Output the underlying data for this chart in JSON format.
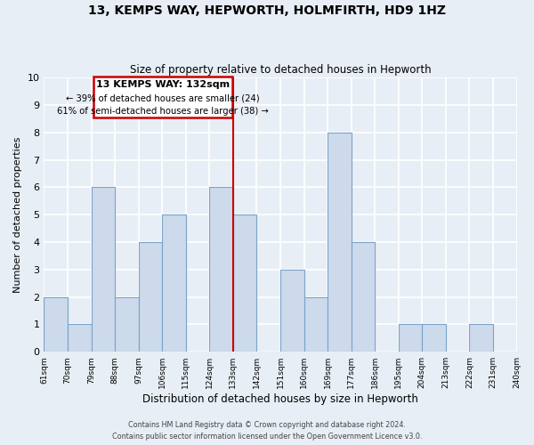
{
  "title": "13, KEMPS WAY, HEPWORTH, HOLMFIRTH, HD9 1HZ",
  "subtitle": "Size of property relative to detached houses in Hepworth",
  "xlabel": "Distribution of detached houses by size in Hepworth",
  "ylabel": "Number of detached properties",
  "bar_color": "#ccdaeb",
  "bar_edgecolor": "#7ba3c8",
  "bins": [
    "61sqm",
    "70sqm",
    "79sqm",
    "88sqm",
    "97sqm",
    "106sqm",
    "115sqm",
    "124sqm",
    "133sqm",
    "142sqm",
    "151sqm",
    "160sqm",
    "169sqm",
    "177sqm",
    "186sqm",
    "195sqm",
    "204sqm",
    "213sqm",
    "222sqm",
    "231sqm",
    "240sqm"
  ],
  "values": [
    2,
    1,
    6,
    2,
    4,
    5,
    0,
    6,
    5,
    0,
    3,
    2,
    8,
    4,
    0,
    1,
    1,
    0,
    1,
    0
  ],
  "ylim": [
    0,
    10
  ],
  "vline_color": "#cc0000",
  "annotation_title": "13 KEMPS WAY: 132sqm",
  "annotation_line1": "← 39% of detached houses are smaller (24)",
  "annotation_line2": "61% of semi-detached houses are larger (38) →",
  "annotation_box_color": "#cc0000",
  "footer1": "Contains HM Land Registry data © Crown copyright and database right 2024.",
  "footer2": "Contains public sector information licensed under the Open Government Licence v3.0.",
  "background_color": "#e8eef5",
  "grid_color": "white"
}
